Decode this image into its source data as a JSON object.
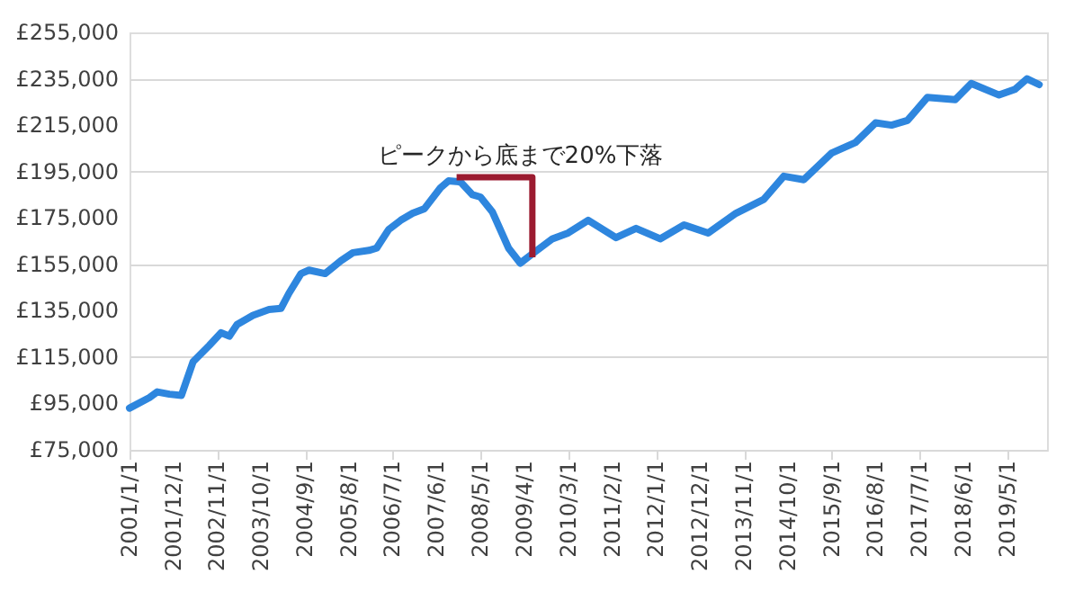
{
  "chart_data": {
    "type": "line",
    "x": [
      "2001-01",
      "2001-06",
      "2001-08",
      "2001-11",
      "2002-02",
      "2002-05",
      "2002-09",
      "2002-12",
      "2003-02",
      "2003-04",
      "2003-08",
      "2003-12",
      "2004-03",
      "2004-05",
      "2004-08",
      "2004-10",
      "2005-02",
      "2005-06",
      "2005-09",
      "2006-01",
      "2006-03",
      "2006-06",
      "2006-09",
      "2006-12",
      "2007-03",
      "2007-07",
      "2007-09",
      "2007-12",
      "2008-03",
      "2008-05",
      "2008-08",
      "2008-12",
      "2009-03",
      "2009-06",
      "2009-11",
      "2010-03",
      "2010-08",
      "2011-03",
      "2011-08",
      "2012-02",
      "2012-08",
      "2013-02",
      "2013-09",
      "2014-04",
      "2014-09",
      "2015-02",
      "2015-09",
      "2016-03",
      "2016-08",
      "2016-12",
      "2017-04",
      "2017-09",
      "2018-04",
      "2018-08",
      "2019-03",
      "2019-07",
      "2019-10",
      "2020-01"
    ],
    "series": [
      {
        "color": "#2e86de",
        "values": [
          93000,
          97500,
          100000,
          99000,
          98500,
          113000,
          120000,
          125500,
          124000,
          129000,
          133000,
          135500,
          136000,
          142500,
          151000,
          152500,
          151000,
          156500,
          160000,
          161000,
          162000,
          170000,
          174000,
          177000,
          179000,
          188000,
          191000,
          190500,
          185000,
          184000,
          177500,
          162000,
          155500,
          159500,
          166000,
          168500,
          174000,
          166500,
          170500,
          166000,
          172000,
          168500,
          177000,
          183000,
          193000,
          191500,
          203000,
          207500,
          216000,
          215000,
          217000,
          227000,
          226000,
          233000,
          228000,
          230500,
          235000,
          232500
        ]
      },
      {
        "type": "line",
        "color": "#9b1b30",
        "x": [
          "2007-11",
          "2009-06",
          "2009-06"
        ],
        "values": [
          192500,
          192500,
          158000
        ]
      }
    ],
    "xlim": [
      "2001-01",
      "2020-03"
    ],
    "xticks": [
      {
        "value": "2001-01-01",
        "label": "2001/1/1"
      },
      {
        "value": "2001-12-01",
        "label": "2001/12/1"
      },
      {
        "value": "2002-11-01",
        "label": "2002/11/1"
      },
      {
        "value": "2003-10-01",
        "label": "2003/10/1"
      },
      {
        "value": "2004-09-01",
        "label": "2004/9/1"
      },
      {
        "value": "2005-08-01",
        "label": "2005/8/1"
      },
      {
        "value": "2006-07-01",
        "label": "2006/7/1"
      },
      {
        "value": "2007-06-01",
        "label": "2007/6/1"
      },
      {
        "value": "2008-05-01",
        "label": "2008/5/1"
      },
      {
        "value": "2009-04-01",
        "label": "2009/4/1"
      },
      {
        "value": "2010-03-01",
        "label": "2010/3/1"
      },
      {
        "value": "2011-02-01",
        "label": "2011/2/1"
      },
      {
        "value": "2012-01-01",
        "label": "2012/1/1"
      },
      {
        "value": "2012-12-01",
        "label": "2012/12/1"
      },
      {
        "value": "2013-11-01",
        "label": "2013/11/1"
      },
      {
        "value": "2014-10-01",
        "label": "2014/10/1"
      },
      {
        "value": "2015-09-01",
        "label": "2015/9/1"
      },
      {
        "value": "2016-08-01",
        "label": "2016/8/1"
      },
      {
        "value": "2017-07-01",
        "label": "2017/7/1"
      },
      {
        "value": "2018-06-01",
        "label": "2018/6/1"
      },
      {
        "value": "2019-05-01",
        "label": "2019/5/1"
      }
    ],
    "ylim": [
      75000,
      255000
    ],
    "yticks": [
      {
        "value": 75000,
        "label": "£75,000"
      },
      {
        "value": 95000,
        "label": "£95,000"
      },
      {
        "value": 115000,
        "label": "£115,000"
      },
      {
        "value": 135000,
        "label": "£135,000"
      },
      {
        "value": 155000,
        "label": "£155,000"
      },
      {
        "value": 175000,
        "label": "£175,000"
      },
      {
        "value": 195000,
        "label": "£195,000"
      },
      {
        "value": 215000,
        "label": "£215,000"
      },
      {
        "value": 235000,
        "label": "£235,000"
      },
      {
        "value": 255000,
        "label": "£255,000"
      }
    ],
    "annotations": [
      "ピークから底まで20%下落"
    ],
    "grid": "y",
    "marker": "none",
    "line_style": "solid"
  }
}
